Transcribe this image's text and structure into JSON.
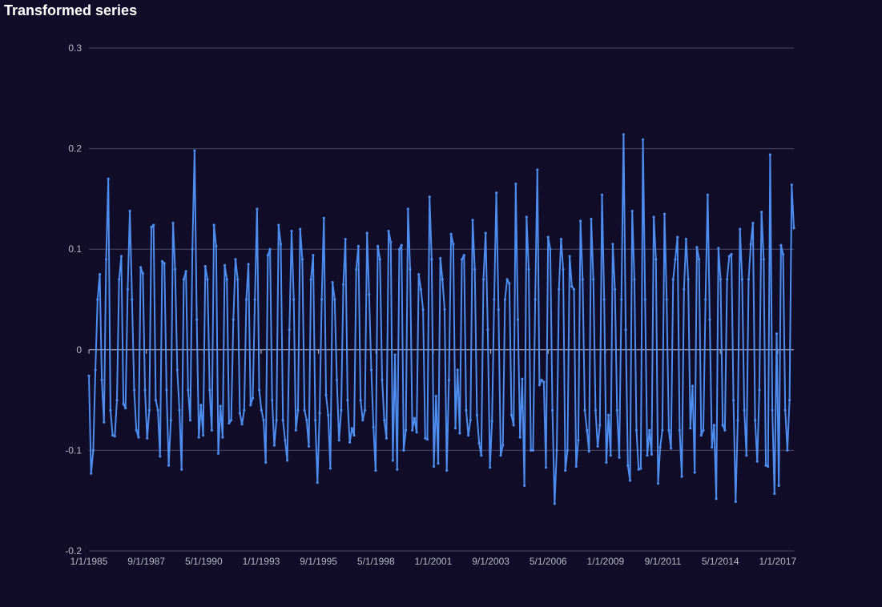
{
  "title": "Transformed series",
  "colors": {
    "background": "#110d28",
    "series": "#4d8df0",
    "grid": "#4a4866",
    "text": "#b8b8c8"
  },
  "chart_data": {
    "type": "line",
    "title": "Transformed series",
    "xlabel": "",
    "ylabel": "",
    "ylim": [
      -0.2,
      0.3
    ],
    "yticks": [
      -0.2,
      -0.1,
      0,
      0.1,
      0.2,
      0.3
    ],
    "ytick_labels": [
      "-0.2",
      "-0.1",
      "0",
      "0.1",
      "0.2",
      "0.3"
    ],
    "xrange": [
      "1985-01-01",
      "2017-10-01"
    ],
    "xticks": [
      "1/1/1985",
      "9/1/1987",
      "5/1/1990",
      "1/1/1993",
      "9/1/1995",
      "5/1/1998",
      "1/1/2001",
      "9/1/2003",
      "5/1/2006",
      "1/1/2009",
      "9/1/2011",
      "5/1/2014",
      "1/1/2017"
    ],
    "grid": true,
    "legend": "none",
    "frequency": "monthly",
    "x_start": "1985-01",
    "x_end": "2017-10",
    "series": [
      {
        "values": [
          -0.026,
          -0.123,
          -0.1,
          -0.02,
          0.05,
          0.075,
          -0.03,
          -0.072,
          0.09,
          0.17,
          -0.06,
          -0.085,
          -0.086,
          -0.05,
          0.07,
          0.093,
          -0.054,
          -0.058,
          0.06,
          0.138,
          0.05,
          -0.04,
          -0.08,
          -0.087,
          0.082,
          0.076,
          -0.04,
          -0.088,
          -0.06,
          0.122,
          0.124,
          -0.05,
          -0.06,
          -0.106,
          0.088,
          0.086,
          -0.04,
          -0.115,
          -0.07,
          0.126,
          0.08,
          -0.02,
          -0.06,
          -0.119,
          0.07,
          0.078,
          -0.04,
          -0.07,
          0.1,
          0.198,
          0.03,
          -0.087,
          -0.055,
          -0.085,
          0.083,
          0.07,
          -0.04,
          -0.08,
          0.124,
          0.103,
          -0.103,
          -0.056,
          -0.087,
          0.084,
          0.07,
          -0.073,
          -0.07,
          0.03,
          0.09,
          0.07,
          -0.063,
          -0.074,
          -0.06,
          0.05,
          0.085,
          -0.055,
          -0.048,
          0.05,
          0.14,
          -0.04,
          -0.06,
          -0.07,
          -0.112,
          0.094,
          0.1,
          -0.05,
          -0.095,
          -0.07,
          0.124,
          0.105,
          -0.07,
          -0.09,
          -0.11,
          0.02,
          0.118,
          0.05,
          -0.08,
          -0.06,
          0.12,
          0.09,
          -0.06,
          -0.07,
          -0.096,
          0.07,
          0.094,
          -0.07,
          -0.132,
          -0.063,
          0.05,
          0.131,
          -0.045,
          -0.065,
          -0.118,
          0.067,
          0.05,
          -0.03,
          -0.09,
          -0.06,
          0.065,
          0.11,
          -0.05,
          -0.092,
          -0.078,
          -0.085,
          0.08,
          0.103,
          -0.05,
          -0.07,
          -0.06,
          0.116,
          0.055,
          -0.02,
          -0.077,
          -0.12,
          0.103,
          0.09,
          -0.03,
          -0.07,
          -0.088,
          0.118,
          0.107,
          -0.11,
          -0.005,
          -0.119,
          0.1,
          0.104,
          -0.1,
          -0.08,
          0.14,
          0.08,
          -0.08,
          -0.068,
          -0.082,
          0.075,
          0.06,
          0.04,
          -0.088,
          -0.089,
          0.152,
          0.09,
          -0.116,
          -0.046,
          -0.113,
          0.091,
          0.07,
          0.04,
          -0.12,
          -0.03,
          0.115,
          0.105,
          -0.078,
          -0.02,
          -0.083,
          0.09,
          0.094,
          -0.06,
          -0.085,
          -0.07,
          0.129,
          0.08,
          -0.065,
          -0.093,
          -0.105,
          0.07,
          0.116,
          0.02,
          -0.117,
          -0.071,
          0.05,
          0.156,
          0.04,
          -0.105,
          -0.095,
          0.05,
          0.07,
          0.066,
          -0.065,
          -0.075,
          0.165,
          0.03,
          -0.087,
          -0.029,
          -0.135,
          0.132,
          0.08,
          -0.1,
          -0.1,
          0.05,
          0.179,
          -0.035,
          -0.03,
          -0.032,
          -0.117,
          0.112,
          0.1,
          -0.06,
          -0.153,
          -0.1,
          0.06,
          0.11,
          0.08,
          -0.12,
          -0.1,
          0.093,
          0.063,
          0.06,
          -0.116,
          -0.09,
          0.128,
          0.07,
          -0.06,
          -0.08,
          -0.101,
          0.13,
          0.07,
          -0.06,
          -0.096,
          -0.075,
          0.154,
          0.05,
          -0.112,
          -0.065,
          -0.105,
          0.105,
          0.06,
          -0.06,
          -0.107,
          0.05,
          0.214,
          0.02,
          -0.115,
          -0.13,
          0.138,
          0.07,
          -0.08,
          -0.119,
          -0.118,
          0.209,
          0.05,
          -0.105,
          -0.08,
          -0.104,
          0.132,
          0.09,
          -0.133,
          -0.097,
          -0.08,
          0.135,
          0.05,
          -0.08,
          -0.098,
          0.07,
          0.09,
          0.112,
          -0.08,
          -0.126,
          0.06,
          0.11,
          0.07,
          -0.078,
          -0.036,
          -0.122,
          0.102,
          0.09,
          -0.085,
          -0.08,
          0.05,
          0.154,
          0.03,
          -0.097,
          -0.075,
          -0.148,
          0.101,
          0.07,
          -0.075,
          -0.08,
          0.07,
          0.093,
          0.095,
          -0.05,
          -0.151,
          -0.07,
          0.12,
          0.07,
          -0.06,
          -0.105,
          0.07,
          0.105,
          0.126,
          -0.07,
          -0.111,
          -0.04,
          0.137,
          0.09,
          -0.115,
          -0.116,
          0.194,
          -0.06,
          -0.143,
          0.016,
          -0.135,
          0.104,
          0.095,
          -0.06,
          -0.1,
          -0.05,
          0.164,
          0.121
        ]
      }
    ]
  }
}
